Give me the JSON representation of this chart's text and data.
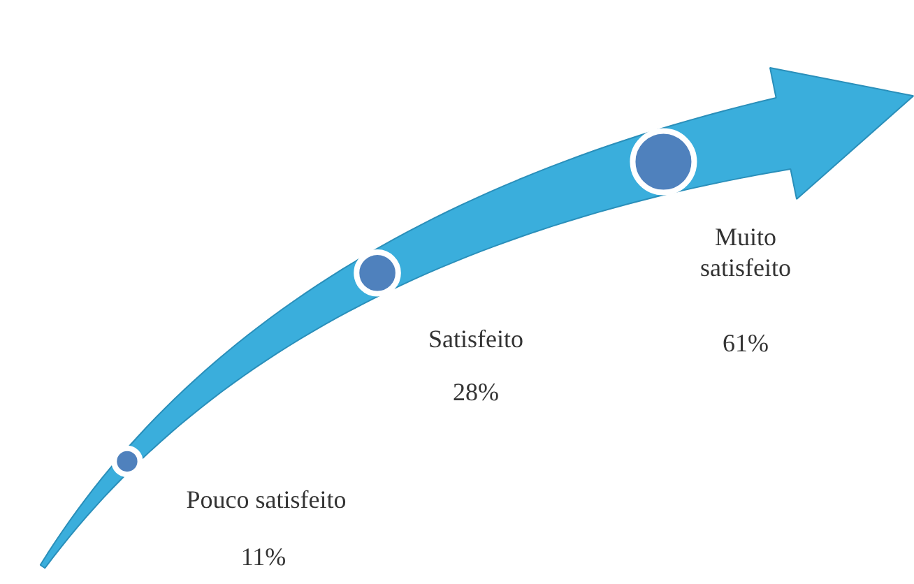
{
  "chart_data": {
    "type": "other",
    "categories": [
      "Pouco satisfeito",
      "Satisfeito",
      "Muito satisfeito"
    ],
    "values": [
      11,
      28,
      61
    ],
    "value_labels": [
      "11%",
      "28%",
      "61%"
    ],
    "color": "#3aaedc",
    "colors": [
      "#4f81bd",
      "#4f81bd",
      "#4f81bd"
    ]
  }
}
